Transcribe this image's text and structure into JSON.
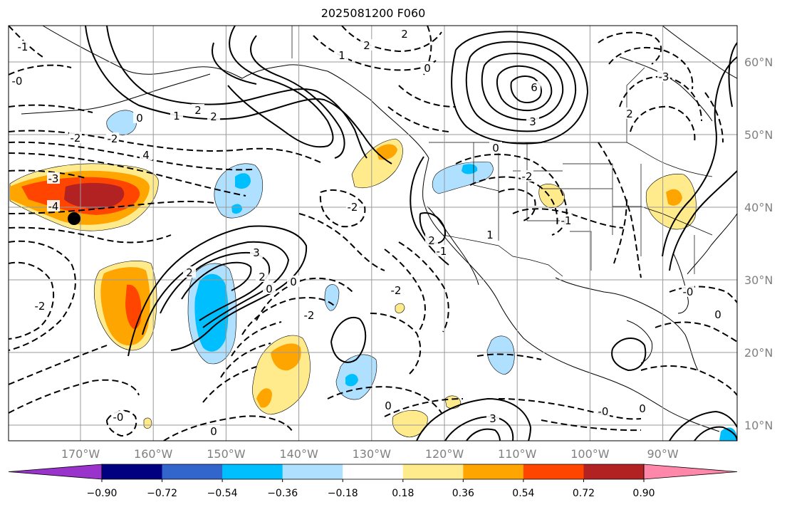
{
  "title": "2025081200 F060",
  "longitudes": [
    {
      "label": "170°W",
      "lon": -170
    },
    {
      "label": "160°W",
      "lon": -160
    },
    {
      "label": "150°W",
      "lon": -150
    },
    {
      "label": "140°W",
      "lon": -140
    },
    {
      "label": "130°W",
      "lon": -130
    },
    {
      "label": "120°W",
      "lon": -120
    },
    {
      "label": "110°W",
      "lon": -110
    },
    {
      "label": "100°W",
      "lon": -100
    },
    {
      "label": "90°W",
      "lon": -90
    }
  ],
  "latitudes": [
    {
      "label": "60°N",
      "lat": 60
    },
    {
      "label": "50°N",
      "lat": 50
    },
    {
      "label": "40°N",
      "lat": 40
    },
    {
      "label": "30°N",
      "lat": 30
    },
    {
      "label": "20°N",
      "lat": 20
    },
    {
      "label": "10°N",
      "lat": 10
    }
  ],
  "colorbar": {
    "colors": [
      "#9933cc",
      "#000080",
      "#3366cc",
      "#00bfff",
      "#afe0ff",
      "#ffffff",
      "#ffeb8c",
      "#ffa500",
      "#ff4500",
      "#b22222",
      "#ff88aa"
    ],
    "ticks": [
      "−0.90",
      "−0.72",
      "−0.54",
      "−0.36",
      "−0.18",
      "0.18",
      "0.36",
      "0.54",
      "0.72",
      "0.90"
    ]
  },
  "contour_labels": [
    "2",
    "-1",
    "-0",
    "-2",
    "-2",
    "0",
    "2",
    "2",
    "4",
    "6",
    "3",
    "1",
    "0",
    "1",
    "2",
    "-2",
    "2",
    "-2",
    "-3",
    "-4",
    "-2",
    "3",
    "2",
    "0",
    "0",
    "-2",
    "-2",
    "-1",
    "1",
    "-0",
    "0",
    "-1",
    "0",
    "2",
    "0",
    "-0",
    "0",
    "-0",
    "0",
    "-3",
    "2",
    "3"
  ],
  "marker": {
    "name": "black dot",
    "lon": -171,
    "lat": 38.5
  }
}
